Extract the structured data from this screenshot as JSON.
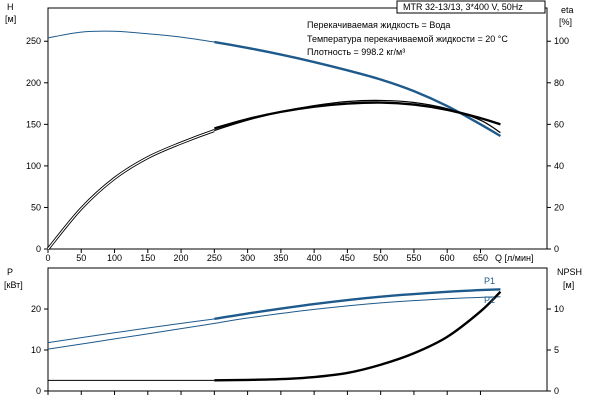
{
  "chart_data": [
    {
      "type": "line",
      "header": "MTR 32-13/13, 3*400 V, 50Hz",
      "notes": [
        "Перекачиваемая жидкость = Вода",
        "Температура перекачиваемой жидкости = 20 °C",
        "Плотность = 998.2 кг/м³"
      ],
      "left_axis": {
        "label": "H",
        "unit": "[м]",
        "range": [
          0,
          290
        ],
        "ticks": [
          "0",
          "50",
          "100",
          "150",
          "200",
          "250"
        ],
        "tick_values": [
          0,
          50,
          100,
          150,
          200,
          250
        ]
      },
      "right_axis": {
        "label": "eta",
        "unit": "[%]",
        "range": [
          0,
          116
        ],
        "ticks": [
          "0",
          "20",
          "40",
          "60",
          "80",
          "100"
        ],
        "tick_values": [
          0,
          20,
          40,
          60,
          80,
          100
        ]
      },
      "x_axis": {
        "label": "Q [л/мин]",
        "range": [
          0,
          750
        ],
        "ticks": [
          "0",
          "50",
          "100",
          "150",
          "200",
          "250",
          "300",
          "350",
          "400",
          "450",
          "500",
          "550",
          "600",
          "650"
        ],
        "tick_values": [
          0,
          50,
          100,
          150,
          200,
          250,
          300,
          350,
          400,
          450,
          500,
          550,
          600,
          650
        ]
      },
      "series": [
        {
          "key": "H",
          "axis": "left",
          "color": "#1e5a8c",
          "style": "thin-then-thick",
          "thick_from": 250,
          "x": [
            0,
            50,
            100,
            150,
            200,
            250,
            300,
            350,
            400,
            450,
            500,
            550,
            600,
            650,
            680
          ],
          "y": [
            254,
            261,
            262,
            259,
            255,
            249,
            242,
            234,
            225,
            215,
            204,
            190,
            172,
            150,
            136
          ]
        },
        {
          "key": "eta-double",
          "axis": "right",
          "color": "#000000",
          "style": "double-then-single",
          "thick_from": 250,
          "x": [
            0,
            50,
            100,
            150,
            200,
            250,
            300,
            350,
            400,
            450,
            500,
            550,
            600,
            650,
            680
          ],
          "y": [
            0,
            19.5,
            34,
            44,
            51,
            57,
            62,
            66,
            69,
            71,
            71.5,
            70.5,
            67.5,
            62,
            56
          ]
        },
        {
          "key": "eta-thick",
          "axis": "right",
          "color": "#000000",
          "style": "thick",
          "thick_from": 250,
          "x": [
            250,
            300,
            350,
            400,
            450,
            500,
            550,
            600,
            650,
            680
          ],
          "y": [
            58,
            62.5,
            66,
            68.5,
            70,
            70.5,
            69.5,
            67,
            63,
            60
          ]
        }
      ]
    },
    {
      "type": "line",
      "left_axis": {
        "label": "P",
        "unit": "[кВт]",
        "range": [
          0,
          30
        ],
        "ticks": [
          "0",
          "10",
          "20"
        ],
        "tick_values": [
          0,
          10,
          20
        ]
      },
      "right_axis": {
        "label": "NPSH",
        "unit": "[м]",
        "range": [
          0,
          15
        ],
        "ticks": [
          "0",
          "5",
          "10"
        ],
        "tick_values": [
          0,
          5,
          10
        ]
      },
      "x_axis": {
        "range": [
          0,
          750
        ]
      },
      "series": [
        {
          "name": "P1",
          "axis": "left",
          "color": "#1e5a8c",
          "style": "thin-then-thick",
          "thick_from": 250,
          "x": [
            0,
            100,
            200,
            250,
            300,
            400,
            500,
            600,
            680
          ],
          "y": [
            11.8,
            14.2,
            16.5,
            17.6,
            18.9,
            21.2,
            23.0,
            24.2,
            24.8
          ]
        },
        {
          "name": "P2",
          "axis": "left",
          "color": "#1e5a8c",
          "style": "thin",
          "thick_from": 250,
          "x": [
            0,
            100,
            200,
            250,
            300,
            400,
            500,
            600,
            680
          ],
          "y": [
            10.2,
            12.7,
            15.2,
            16.5,
            17.8,
            19.9,
            21.5,
            22.5,
            23.0
          ]
        },
        {
          "key": "NPSH",
          "axis": "right",
          "color": "#000000",
          "style": "thin-then-thick",
          "thick_from": 250,
          "x": [
            0,
            100,
            200,
            250,
            300,
            350,
            400,
            450,
            500,
            550,
            600,
            650,
            680
          ],
          "y": [
            1.3,
            1.3,
            1.3,
            1.3,
            1.35,
            1.45,
            1.7,
            2.2,
            3.2,
            4.6,
            6.6,
            9.7,
            12.1
          ]
        }
      ]
    }
  ]
}
